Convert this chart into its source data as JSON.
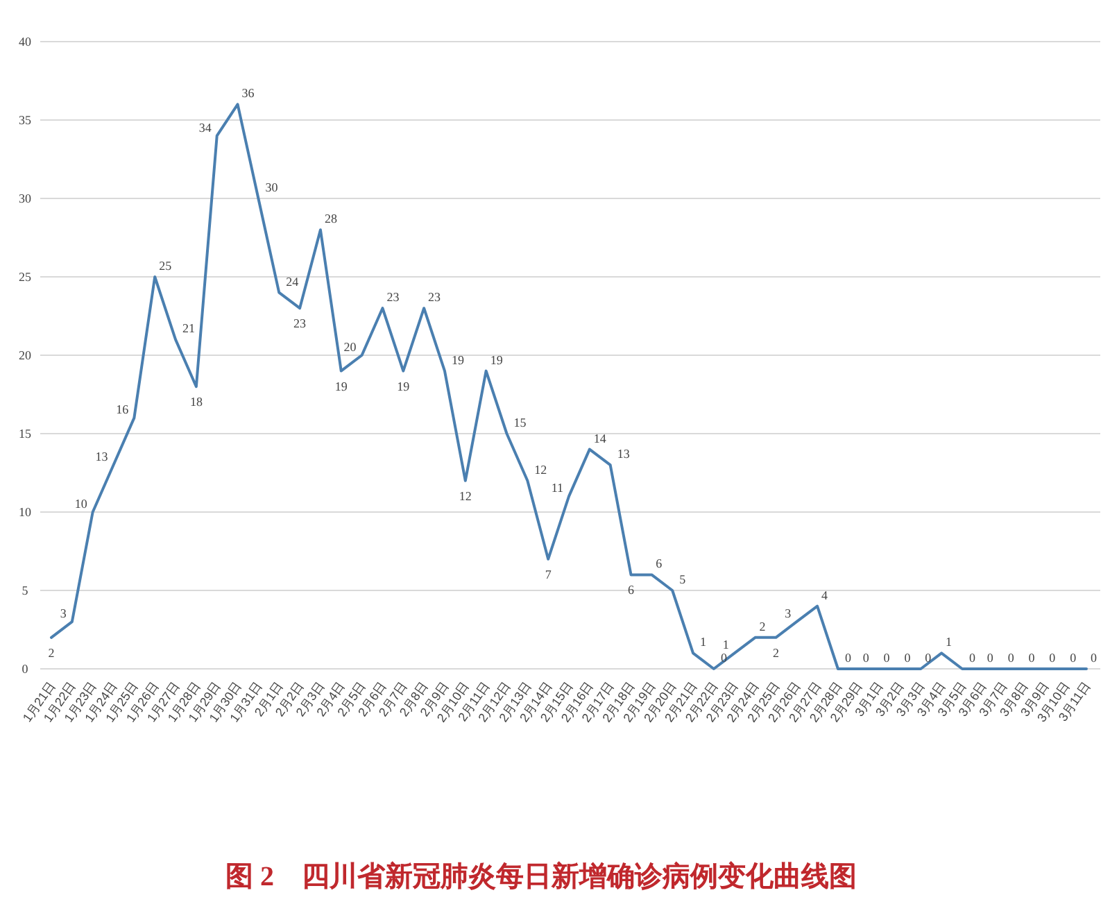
{
  "chart_data": {
    "type": "line",
    "title": "图 2　四川省新冠肺炎每日新增确诊病例变化曲线图",
    "categories": [
      "1月21日",
      "1月22日",
      "1月23日",
      "1月24日",
      "1月25日",
      "1月26日",
      "1月27日",
      "1月28日",
      "1月29日",
      "1月30日",
      "1月31日",
      "2月1日",
      "2月2日",
      "2月3日",
      "2月4日",
      "2月5日",
      "2月6日",
      "2月7日",
      "2月8日",
      "2月9日",
      "2月10日",
      "2月11日",
      "2月12日",
      "2月13日",
      "2月14日",
      "2月15日",
      "2月16日",
      "2月17日",
      "2月18日",
      "2月19日",
      "2月20日",
      "2月21日",
      "2月22日",
      "2月23日",
      "2月24日",
      "2月25日",
      "2月26日",
      "2月27日",
      "2月28日",
      "2月29日",
      "3月1日",
      "3月2日",
      "3月3日",
      "3月4日",
      "3月5日",
      "3月6日",
      "3月7日",
      "3月8日",
      "3月9日",
      "3月10日",
      "3月11日"
    ],
    "series": [
      {
        "color": "#4a7fb0",
        "values": [
          2,
          3,
          10,
          13,
          16,
          25,
          21,
          18,
          34,
          36,
          30,
          24,
          23,
          28,
          19,
          20,
          23,
          19,
          23,
          19,
          12,
          19,
          15,
          12,
          7,
          11,
          14,
          13,
          6,
          6,
          5,
          1,
          0,
          1,
          2,
          2,
          3,
          4,
          0,
          0,
          0,
          0,
          0,
          1,
          0,
          0,
          0,
          0,
          0,
          0,
          0
        ]
      }
    ],
    "ylim": [
      0,
      40
    ],
    "yticks": [
      0,
      5,
      10,
      15,
      20,
      25,
      30,
      35,
      40
    ],
    "grid": "y",
    "data_labels": true,
    "marker": "none",
    "line_style": "solid"
  }
}
